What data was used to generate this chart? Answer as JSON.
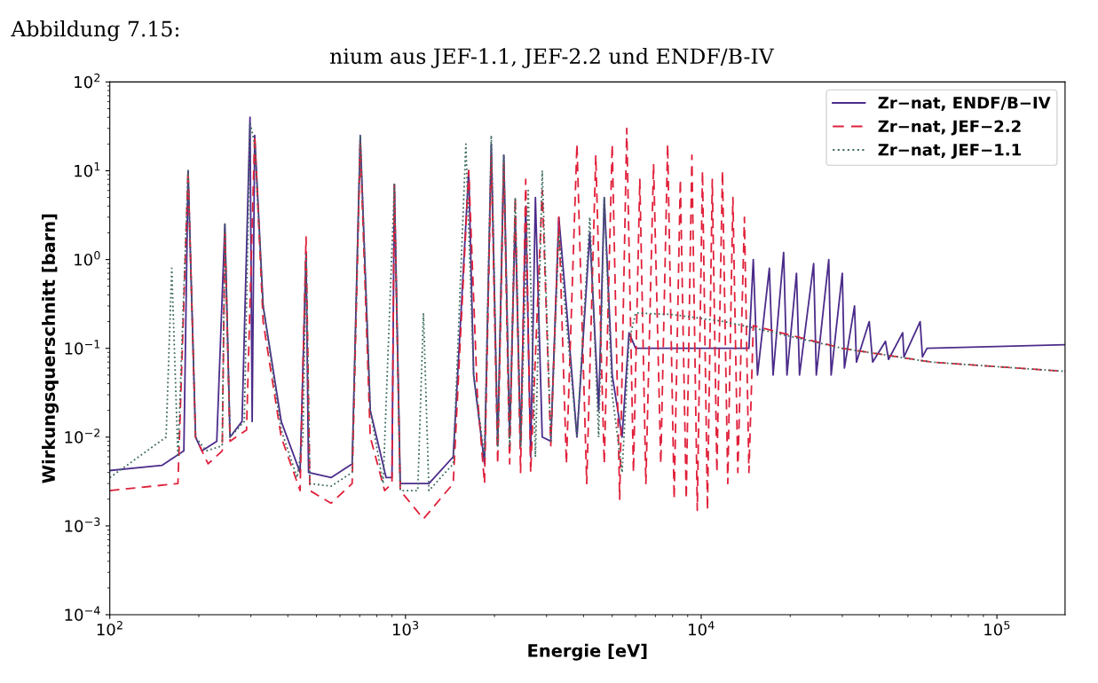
{
  "chart_data": {
    "type": "line",
    "annotations": [
      "Abbildung 7.15:",
      "nium aus JEF-1.1, JEF-2.2 und ENDF/B-IV"
    ],
    "xlabel": "Energie [eV]",
    "ylabel": "Wirkungsquerschnitt [barn]",
    "log": "xy",
    "grid": false,
    "legend": "top right",
    "marker": "none",
    "xlim": [
      100,
      170000
    ],
    "ylim": [
      0.0001,
      100
    ],
    "xticks": [
      {
        "value": 100,
        "label": "10$^{2}$"
      },
      {
        "value": 1000,
        "label": "10$^{3}$"
      },
      {
        "value": 10000,
        "label": "10$^{4}$"
      },
      {
        "value": 100000,
        "label": "10$^{5}$"
      }
    ],
    "yticks": [
      {
        "value": 0.0001,
        "label": "10$^{−4}$"
      },
      {
        "value": 0.001,
        "label": "10$^{−3}$"
      },
      {
        "value": 0.01,
        "label": "10$^{−2}$"
      },
      {
        "value": 0.1,
        "label": "10$^{−1}$"
      },
      {
        "value": 1,
        "label": "10$^{0}$"
      },
      {
        "value": 10,
        "label": "10$^{1}$"
      },
      {
        "value": 100,
        "label": "10$^{2}$"
      }
    ],
    "series": [
      {
        "name": "Zr−nat, ENDF/B−IV",
        "color": "#4b2c8a",
        "line_style": "solid",
        "x": [
          100,
          150,
          178,
          184,
          195,
          205,
          230,
          245,
          255,
          280,
          298,
          303,
          309,
          330,
          380,
          440,
          461,
          470,
          560,
          660,
          703,
          760,
          860,
          900,
          917,
          960,
          1200,
          1450,
          1636,
          1700,
          1850,
          1950,
          2050,
          2150,
          2250,
          2350,
          2450,
          2550,
          2650,
          2750,
          2900,
          3100,
          3300,
          3500,
          3800,
          4200,
          4500,
          4700,
          5000,
          5400,
          5700,
          6000,
          7000,
          9000,
          12000,
          14500,
          15000,
          15500,
          17000,
          17500,
          19000,
          19500,
          21000,
          21500,
          24000,
          24500,
          27000,
          27500,
          30000,
          30500,
          33000,
          33500,
          37000,
          38000,
          42000,
          43000,
          48000,
          48500,
          55000,
          56000,
          58000,
          100000,
          170000
        ],
        "values": [
          0.0042,
          0.0048,
          0.007,
          10,
          0.01,
          0.007,
          0.009,
          2.5,
          0.01,
          0.015,
          40,
          0.015,
          25,
          0.3,
          0.015,
          0.004,
          1.2,
          0.004,
          0.0035,
          0.005,
          25,
          0.02,
          0.0035,
          0.0035,
          7,
          0.003,
          0.003,
          0.006,
          10,
          0.05,
          0.005,
          20,
          0.008,
          15,
          0.01,
          3,
          0.008,
          4,
          0.006,
          5,
          0.01,
          0.009,
          3,
          0.3,
          0.01,
          2,
          0.02,
          5,
          0.05,
          0.01,
          0.15,
          0.1,
          0.1,
          0.1,
          0.1,
          0.1,
          1,
          0.05,
          0.8,
          0.05,
          1.2,
          0.05,
          0.7,
          0.05,
          0.9,
          0.05,
          1,
          0.05,
          0.7,
          0.06,
          0.3,
          0.07,
          0.2,
          0.07,
          0.12,
          0.075,
          0.15,
          0.08,
          0.2,
          0.08,
          0.1,
          0.105,
          0.11
        ]
      },
      {
        "name": "Zr−nat, JEF−2.2",
        "color": "#e0203a",
        "line_style": "dashed",
        "x": [
          100,
          170,
          184,
          195,
          215,
          240,
          245,
          255,
          290,
          309,
          330,
          380,
          440,
          461,
          475,
          560,
          660,
          703,
          760,
          850,
          900,
          917,
          935,
          960,
          1150,
          1450,
          1636,
          1750,
          1850,
          1950,
          2050,
          2150,
          2250,
          2350,
          2450,
          2550,
          2650,
          2900,
          3100,
          3300,
          3500,
          3800,
          4100,
          4400,
          4700,
          5000,
          5300,
          5600,
          5900,
          6200,
          6500,
          6900,
          7300,
          7700,
          8100,
          8500,
          8900,
          9300,
          9700,
          10100,
          10500,
          10900,
          11300,
          11800,
          12300,
          12800,
          13300,
          14000,
          14500,
          15000,
          30000,
          60000,
          170000
        ],
        "values": [
          0.0025,
          0.003,
          10,
          0.01,
          0.005,
          0.007,
          2,
          0.009,
          0.012,
          25,
          0.2,
          0.01,
          0.0025,
          1.8,
          0.0025,
          0.0018,
          0.003,
          20,
          0.01,
          0.0025,
          0.003,
          7,
          0.2,
          0.0025,
          0.0012,
          0.003,
          10,
          0.03,
          0.003,
          15,
          0.005,
          12,
          0.005,
          5,
          0.004,
          8,
          0.004,
          6,
          0.008,
          3,
          0.005,
          20,
          0.003,
          15,
          0.005,
          20,
          0.002,
          30,
          0.004,
          8,
          0.003,
          12,
          0.005,
          20,
          0.002,
          8,
          0.002,
          15,
          0.0015,
          10,
          0.0015,
          8,
          0.004,
          10,
          0.003,
          5,
          0.004,
          3,
          0.004,
          0.18,
          0.1,
          0.07,
          0.055
        ]
      },
      {
        "name": "Zr−nat, JEF−1.1",
        "color": "#3d6b5e",
        "line_style": "dotted",
        "x": [
          100,
          155,
          162,
          170,
          184,
          195,
          212,
          240,
          245,
          255,
          285,
          298,
          309,
          330,
          380,
          430,
          450,
          461,
          475,
          560,
          660,
          703,
          760,
          840,
          917,
          960,
          1100,
          1150,
          1200,
          1450,
          1600,
          1700,
          1850,
          1950,
          2050,
          2150,
          2250,
          2350,
          2450,
          2600,
          2750,
          2900,
          3100,
          3300,
          3500,
          3800,
          4200,
          4500,
          4700,
          5000,
          5400,
          5700,
          6000,
          8000,
          12000,
          15000,
          30000,
          60000,
          170000
        ],
        "values": [
          0.0035,
          0.01,
          0.8,
          0.006,
          10,
          0.01,
          0.007,
          0.008,
          2.5,
          0.01,
          0.015,
          35,
          20,
          0.3,
          0.012,
          0.0035,
          0.01,
          1.2,
          0.003,
          0.0028,
          0.004,
          25,
          0.02,
          0.003,
          7,
          0.0025,
          0.0025,
          0.25,
          0.0025,
          0.005,
          20,
          0.05,
          0.006,
          25,
          0.008,
          15,
          0.008,
          5,
          0.008,
          6,
          0.006,
          10,
          0.009,
          2,
          0.2,
          0.01,
          3,
          0.01,
          5,
          0.03,
          0.004,
          0.12,
          0.25,
          0.24,
          0.2,
          0.17,
          0.1,
          0.07,
          0.055
        ]
      }
    ]
  }
}
